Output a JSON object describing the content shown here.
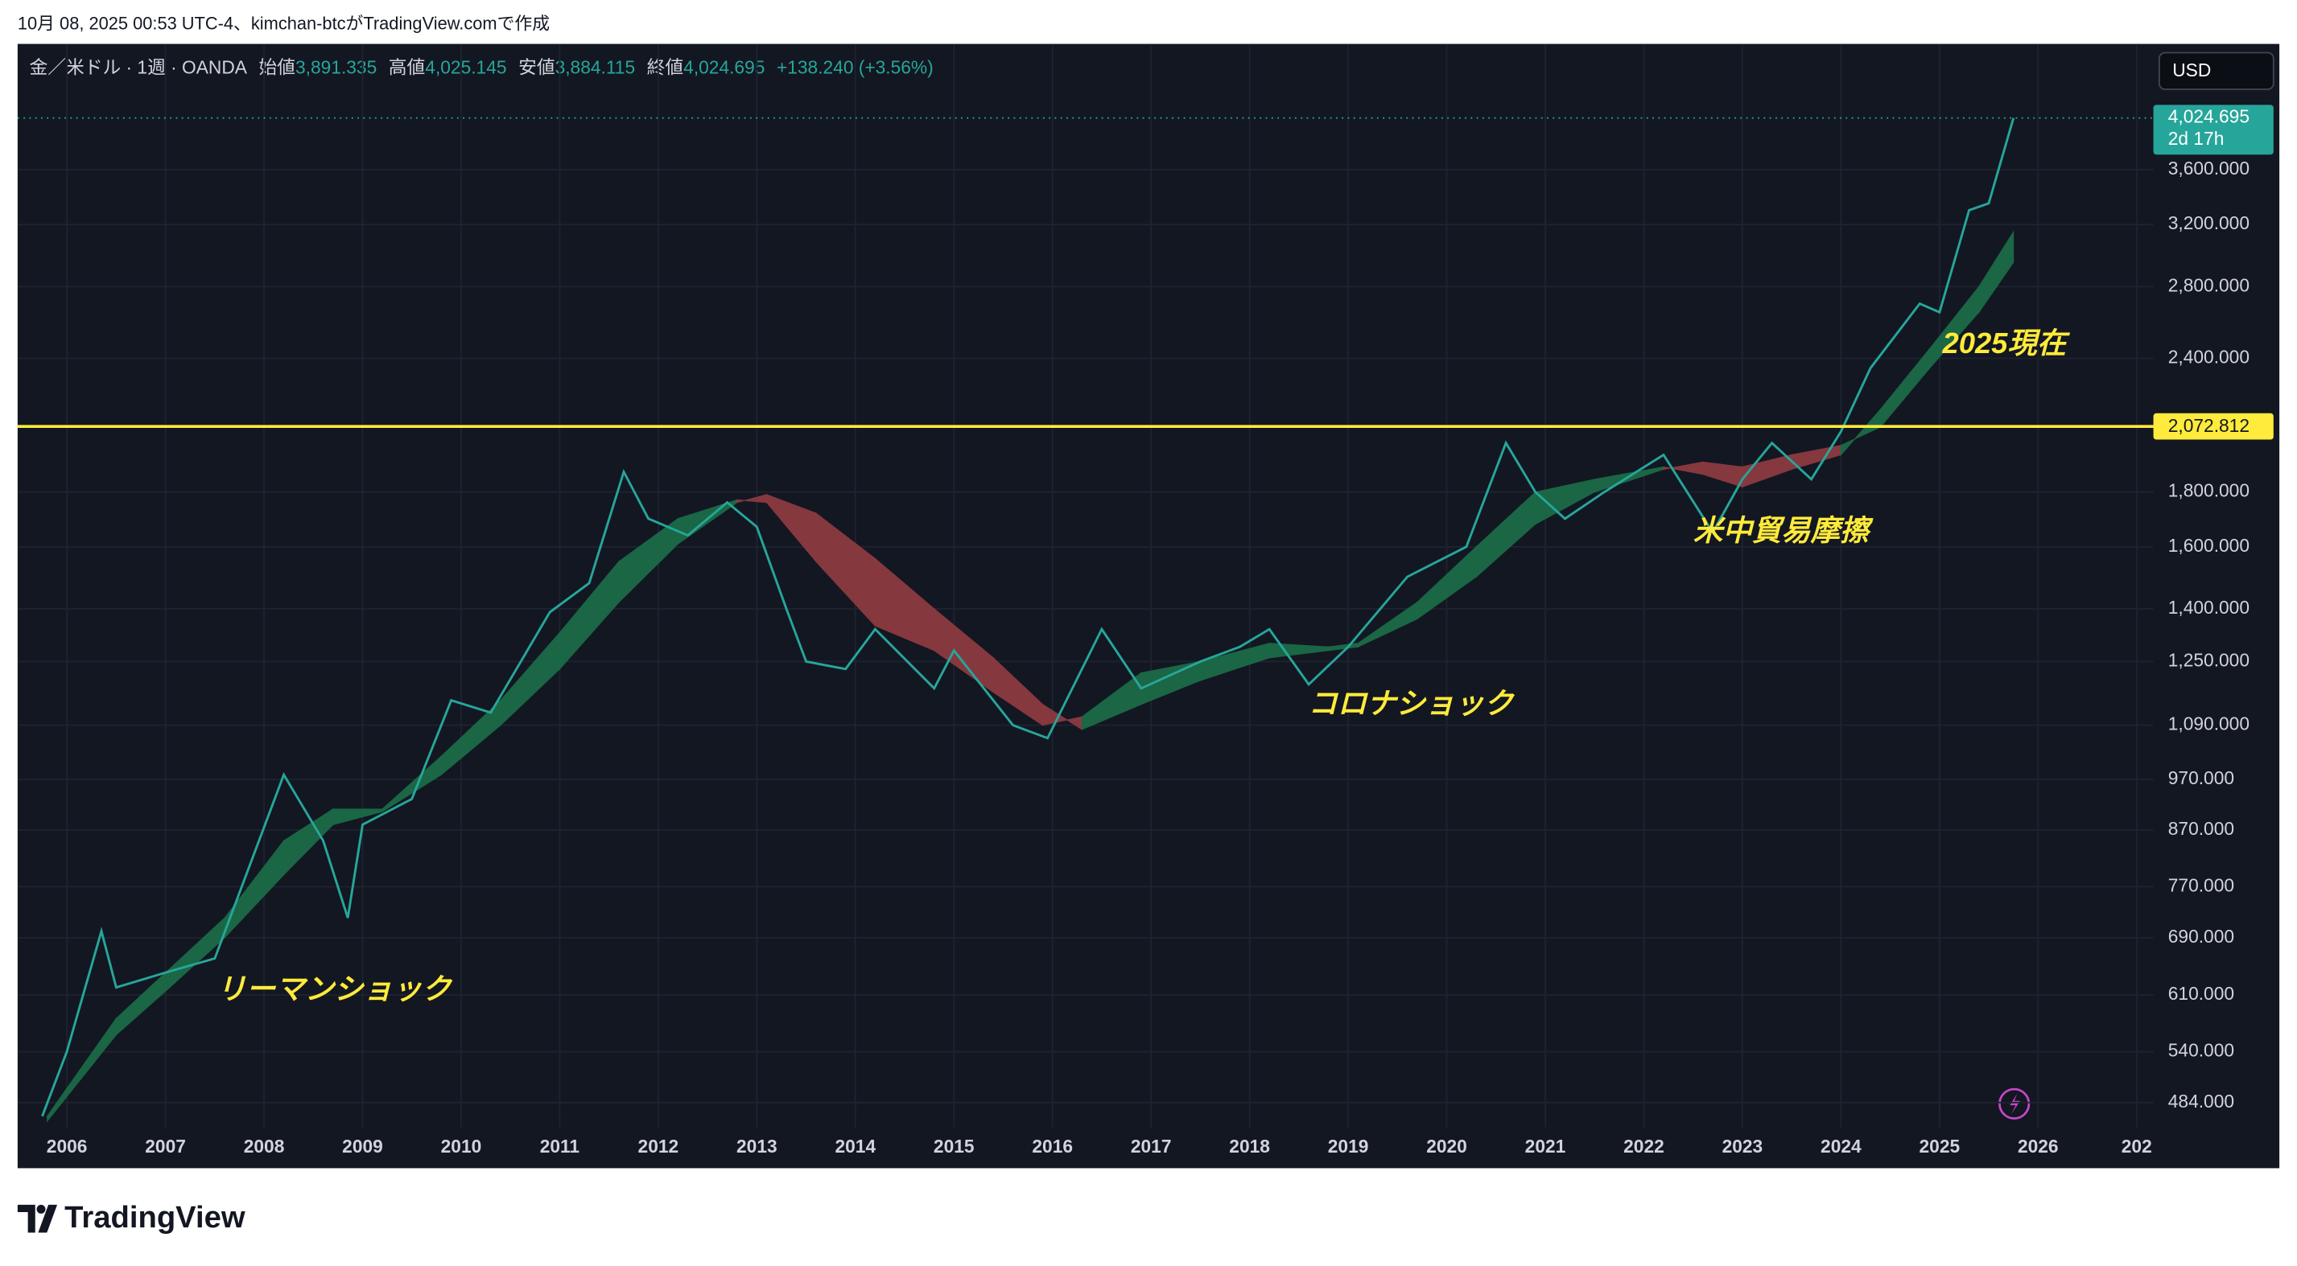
{
  "header": {
    "text": "10月 08, 2025 00:53 UTC-4、kimchan-btcがTradingView.comで作成"
  },
  "footer": {
    "brand": "TradingView"
  },
  "chart_data": {
    "type": "line",
    "symbol": "金／米ドル · 1週 · OANDA",
    "ohlc": [
      {
        "label": "始値",
        "value": "3,891.335"
      },
      {
        "label": "高値",
        "value": "4,025.145"
      },
      {
        "label": "安値",
        "value": "3,884.115"
      },
      {
        "label": "終値",
        "value": "4,024.695"
      }
    ],
    "change": "+138.240 (+3.56%)",
    "currency": "USD",
    "log_scale": true,
    "grid": true,
    "background": "#131722",
    "xlim": [
      2005.5,
      2027.17
    ],
    "xticks": [
      2006,
      2007,
      2008,
      2009,
      2010,
      2011,
      2012,
      2013,
      2014,
      2015,
      2016,
      2017,
      2018,
      2019,
      2020,
      2021,
      2022,
      2023,
      2024,
      2025,
      2026,
      {
        "value": 2027,
        "label": "202"
      }
    ],
    "ylim": [
      459,
      4720
    ],
    "yticks": [
      {
        "value": 484,
        "label": "484.000"
      },
      {
        "value": 540,
        "label": "540.000"
      },
      {
        "value": 610,
        "label": "610.000"
      },
      {
        "value": 690,
        "label": "690.000"
      },
      {
        "value": 770,
        "label": "770.000"
      },
      {
        "value": 870,
        "label": "870.000"
      },
      {
        "value": 970,
        "label": "970.000"
      },
      {
        "value": 1090,
        "label": "1,090.000"
      },
      {
        "value": 1250,
        "label": "1,250.000"
      },
      {
        "value": 1400,
        "label": "1,400.000"
      },
      {
        "value": 1600,
        "label": "1,600.000"
      },
      {
        "value": 1800,
        "label": "1,800.000"
      },
      {
        "value": 2400,
        "label": "2,400.000"
      },
      {
        "value": 2800,
        "label": "2,800.000"
      },
      {
        "value": 3200,
        "label": "3,200.000"
      },
      {
        "value": 3600,
        "label": "3,600.000"
      }
    ],
    "x": [
      2005.75,
      2006.0,
      2006.35,
      2006.5,
      2007.0,
      2007.5,
      2008.2,
      2008.6,
      2008.85,
      2009.0,
      2009.5,
      2009.9,
      2010.3,
      2010.9,
      2011.3,
      2011.65,
      2011.9,
      2012.3,
      2012.7,
      2013.0,
      2013.3,
      2013.5,
      2013.9,
      2014.2,
      2014.8,
      2015.0,
      2015.6,
      2015.95,
      2016.5,
      2016.9,
      2017.5,
      2017.9,
      2018.2,
      2018.6,
      2019.0,
      2019.6,
      2020.2,
      2020.6,
      2020.9,
      2021.2,
      2021.6,
      2022.2,
      2022.7,
      2023.0,
      2023.3,
      2023.7,
      2024.0,
      2024.3,
      2024.8,
      2025.0,
      2025.3,
      2025.5,
      2025.75
    ],
    "series": [
      {
        "color": "#26a69a",
        "values": [
          470,
          540,
          700,
          620,
          640,
          660,
          980,
          850,
          720,
          880,
          930,
          1150,
          1120,
          1390,
          1480,
          1880,
          1700,
          1640,
          1760,
          1670,
          1400,
          1250,
          1230,
          1340,
          1180,
          1280,
          1090,
          1060,
          1340,
          1180,
          1250,
          1290,
          1340,
          1190,
          1290,
          1500,
          1600,
          2000,
          1800,
          1700,
          1800,
          1950,
          1650,
          1850,
          2000,
          1850,
          2050,
          2350,
          2700,
          2650,
          3300,
          3350,
          4024.695
        ]
      }
    ],
    "ribbon": {
      "up_color": "#1b6b47",
      "down_color": "#8c3a40",
      "x": [
        2005.8,
        2006.5,
        2007.0,
        2007.6,
        2008.2,
        2008.7,
        2009.2,
        2009.8,
        2010.4,
        2011.0,
        2011.6,
        2012.2,
        2012.8,
        2013.1,
        2013.6,
        2014.2,
        2014.8,
        2015.4,
        2015.9,
        2016.3,
        2016.9,
        2017.5,
        2018.2,
        2018.8,
        2019.1,
        2019.7,
        2020.3,
        2020.9,
        2021.5,
        2022.2,
        2022.6,
        2023.0,
        2023.5,
        2024.0,
        2024.4,
        2024.9,
        2025.4,
        2025.75
      ],
      "fast": [
        470,
        580,
        640,
        720,
        850,
        910,
        910,
        1020,
        1150,
        1330,
        1550,
        1700,
        1770,
        1760,
        1550,
        1350,
        1280,
        1170,
        1090,
        1110,
        1220,
        1250,
        1300,
        1290,
        1300,
        1420,
        1600,
        1800,
        1850,
        1900,
        1870,
        1820,
        1890,
        1950,
        2150,
        2450,
        2800,
        3150
      ],
      "slow": [
        465,
        560,
        615,
        690,
        790,
        880,
        905,
        980,
        1090,
        1230,
        1420,
        1610,
        1760,
        1790,
        1720,
        1560,
        1400,
        1260,
        1140,
        1080,
        1140,
        1200,
        1260,
        1280,
        1290,
        1370,
        1500,
        1680,
        1800,
        1890,
        1920,
        1900,
        1950,
        1990,
        2070,
        2350,
        2650,
        2950
      ]
    },
    "last_price": {
      "value": 4024.695,
      "label": "4,024.695",
      "countdown": "2d 17h",
      "color": "#26a69a"
    },
    "hline": {
      "value": 2072.812,
      "label": "2,072.812",
      "color": "#ffeb3b"
    },
    "annotations": [
      "リーマンショック",
      "コロナショック",
      "米中貿易摩擦",
      "2025現在"
    ]
  }
}
